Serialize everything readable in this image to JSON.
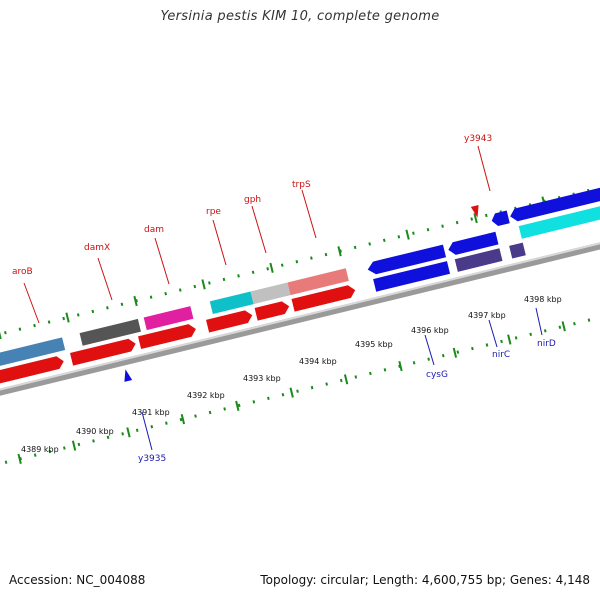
{
  "title": "Yersinia pestis KIM 10, complete genome",
  "accession": "Accession: NC_004088",
  "summary": "Topology: circular; Length: 4,600,755 bp; Genes: 4,148",
  "colors": {
    "red": "#e01010",
    "blue": "#1010dd",
    "steel_blue": "#4682b4",
    "dark_gray": "#555555",
    "magenta": "#e020a0",
    "cyan": "#10c8c8",
    "light_gray": "#c0c0c0",
    "salmon": "#e87a7a",
    "slate": "#4a3a8a",
    "backbone": "#909090",
    "tick_green": "#1a8a1a"
  },
  "tick_labels": [
    "4389 kbp",
    "4390 kbp",
    "4391 kbp",
    "4392 kbp",
    "4393 kbp",
    "4394 kbp",
    "4395 kbp",
    "4396 kbp",
    "4397 kbp",
    "4398 kbp"
  ],
  "genes_top": [
    "aroB",
    "damX",
    "dam",
    "rpe",
    "gph",
    "trpS",
    "y3943"
  ],
  "genes_bottom": [
    "y3935",
    "cysG",
    "nirC",
    "nirD"
  ]
}
